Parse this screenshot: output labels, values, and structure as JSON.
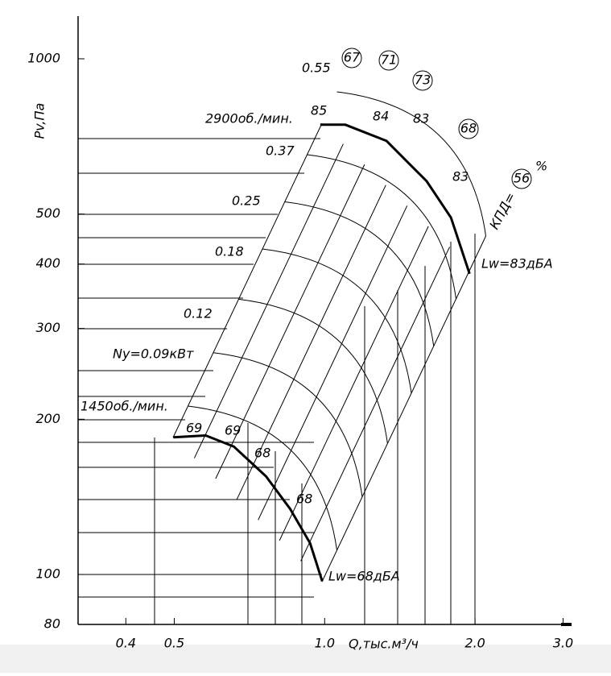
{
  "chart_data": {
    "type": "line",
    "y_label": "Pv,Па",
    "x_label": "Q,тыс.м³/ч",
    "log_x": true,
    "log_y": true,
    "xlim": [
      0.321,
      3.12
    ],
    "ylim": [
      80,
      1210
    ],
    "xticks": [
      0.4,
      0.5,
      {
        "value": 1,
        "label": "1.0"
      },
      {
        "value": 2,
        "label": "2.0"
      },
      {
        "value": 3,
        "label": "3.0"
      }
    ],
    "yticks": [
      80,
      100,
      200,
      300,
      400,
      500,
      1000
    ],
    "series": [
      {
        "name": "2900об./мин.",
        "color": "#000000",
        "x": [
          0.98,
          1.1,
          1.33,
          1.6,
          1.79,
          1.95
        ],
        "values": [
          745,
          745,
          693,
          579,
          492,
          383
        ]
      },
      {
        "name": "1450об./мин.",
        "color": "#000000",
        "x": [
          0.498,
          0.578,
          0.658,
          0.763,
          0.853,
          0.935,
          0.989
        ],
        "values": [
          184.5,
          186,
          177,
          155,
          134,
          115,
          97
        ]
      }
    ],
    "annotations": [
      "Ny=0.09кВт",
      "0.12",
      "0.18",
      "0.25",
      "0.37",
      "0.55",
      "85",
      "84",
      "83",
      "83",
      "69",
      "69",
      "68",
      "68",
      "67",
      "71",
      "73",
      "68",
      "56",
      "КПД=",
      "%",
      "Lw=83дБА",
      "Lw=68дБА"
    ]
  }
}
